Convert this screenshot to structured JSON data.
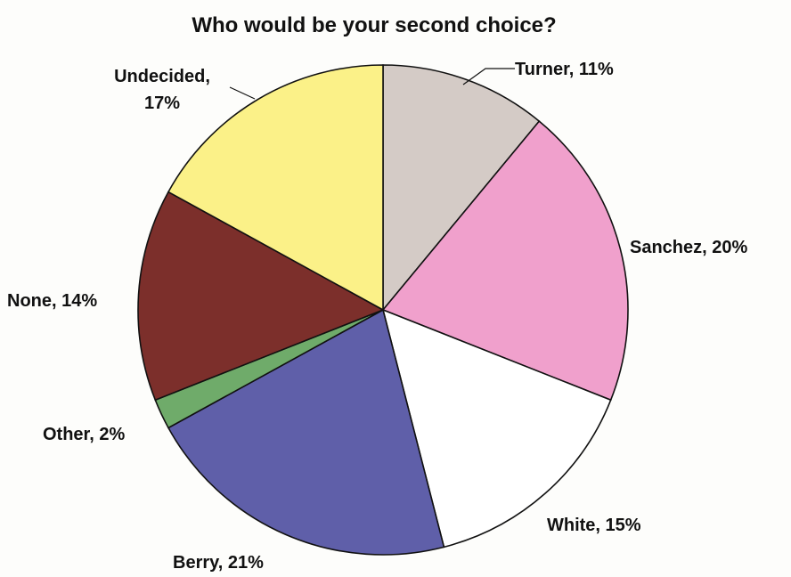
{
  "chart_data": {
    "type": "pie",
    "title": "Who would be your second choice?",
    "start_angle_deg": 0,
    "direction": "clockwise",
    "slices": [
      {
        "name": "Turner",
        "value": 11,
        "label": "Turner, 11%",
        "color": "#d4cbc6"
      },
      {
        "name": "Sanchez",
        "value": 20,
        "label": "Sanchez, 20%",
        "color": "#f0a0cc"
      },
      {
        "name": "White",
        "value": 15,
        "label": "White, 15%",
        "color": "#ffffff"
      },
      {
        "name": "Berry",
        "value": 21,
        "label": "Berry, 21%",
        "color": "#5f5fa9"
      },
      {
        "name": "Other",
        "value": 2,
        "label": "Other, 2%",
        "color": "#6fab6a"
      },
      {
        "name": "None",
        "value": 14,
        "label": "None, 14%",
        "color": "#7c2f2b"
      },
      {
        "name": "Undecided",
        "value": 17,
        "label": "Undecided, 17%",
        "color": "#fbf188"
      }
    ]
  }
}
